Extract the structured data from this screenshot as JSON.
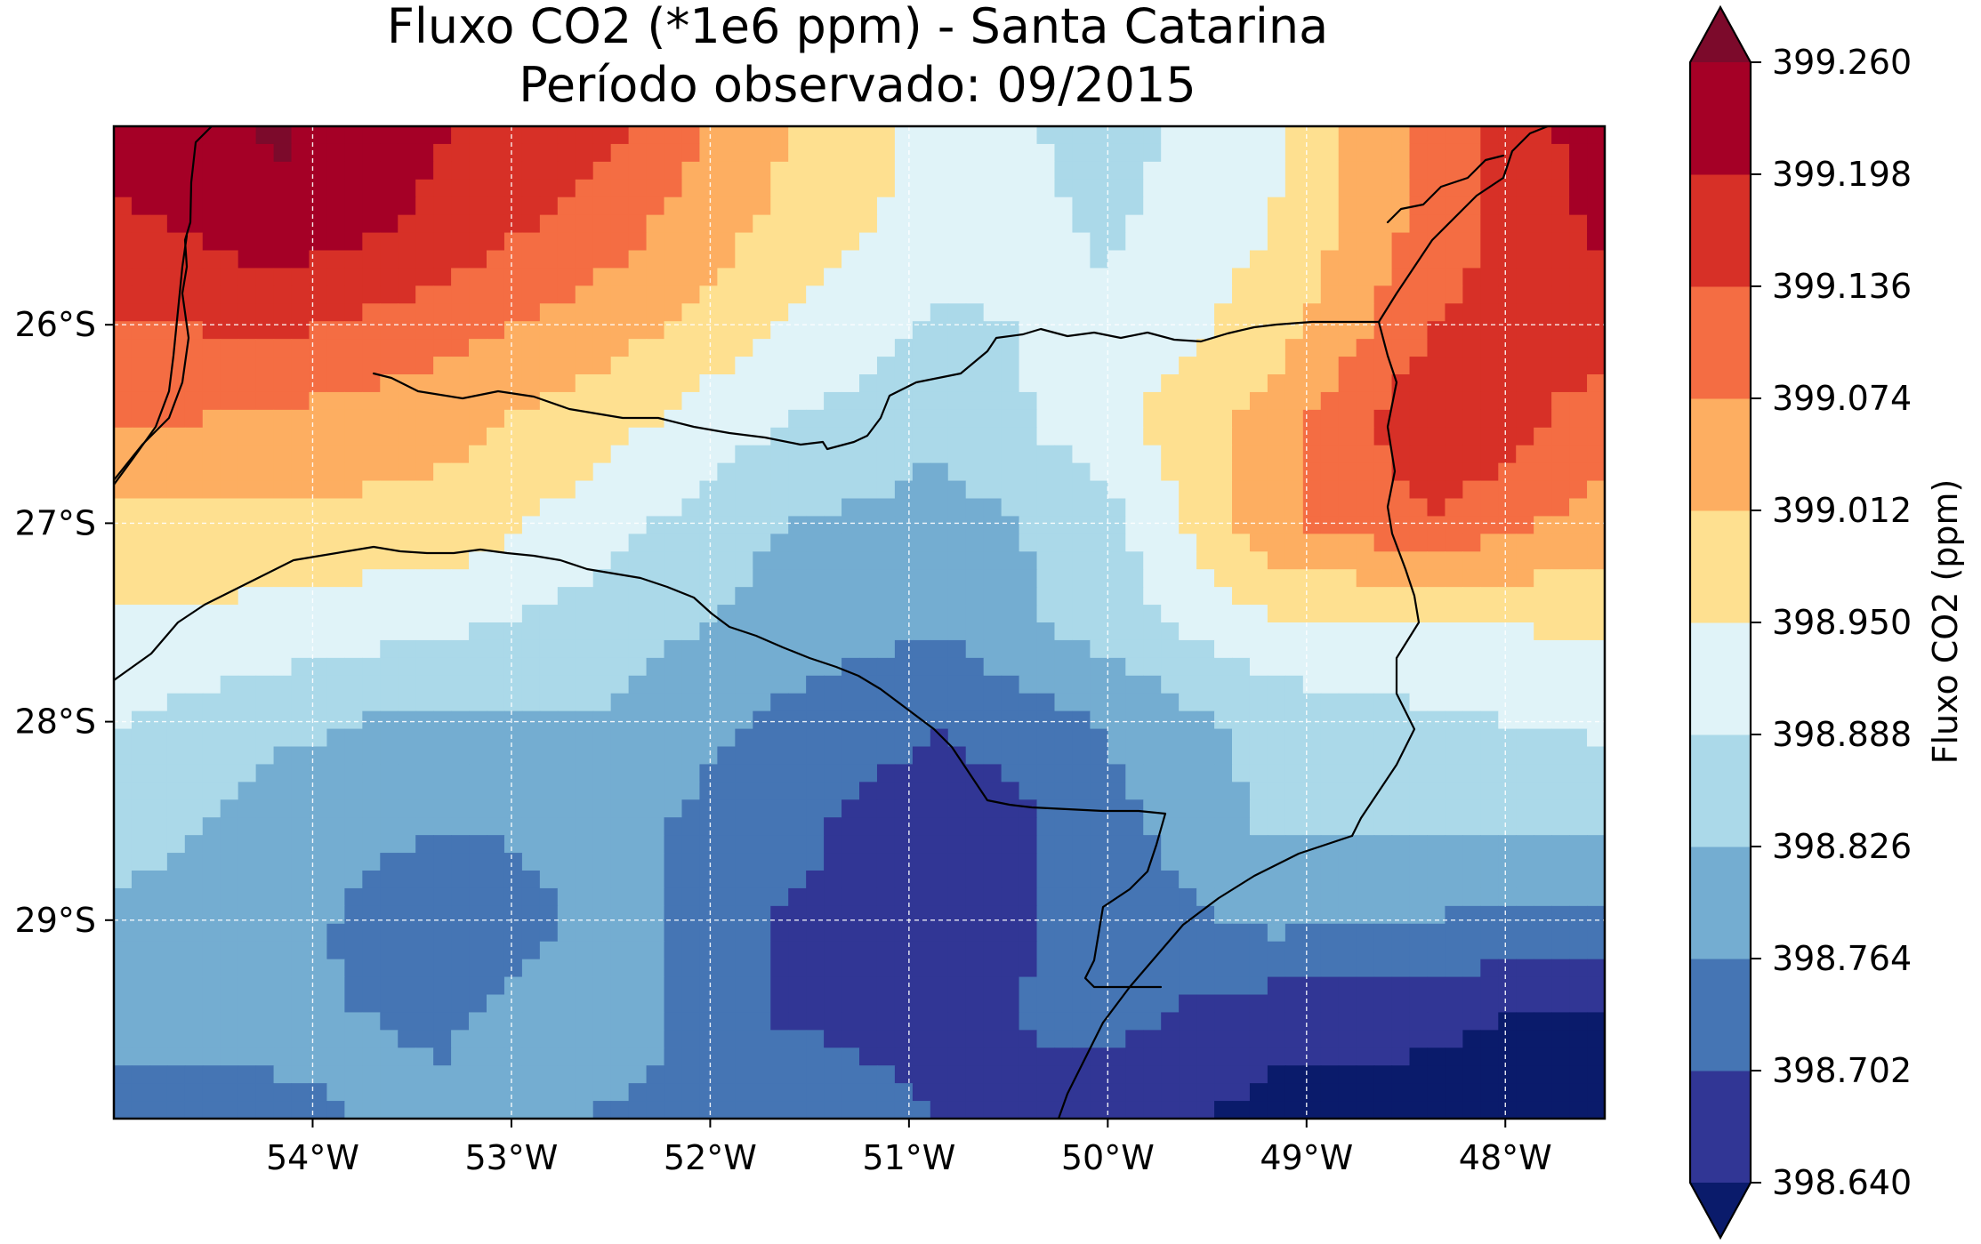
{
  "title": {
    "line1": "Fluxo CO2 (*1e6 ppm) - Santa Catarina",
    "line2": "Período observado: 09/2015"
  },
  "map": {
    "lon_range": [
      -55.0,
      -47.5
    ],
    "lat_range": [
      -30.0,
      -25.0
    ],
    "x_ticks": [
      {
        "value": -54,
        "label": "54°W"
      },
      {
        "value": -53,
        "label": "53°W"
      },
      {
        "value": -52,
        "label": "52°W"
      },
      {
        "value": -51,
        "label": "51°W"
      },
      {
        "value": -50,
        "label": "50°W"
      },
      {
        "value": -49,
        "label": "49°W"
      },
      {
        "value": -48,
        "label": "48°W"
      }
    ],
    "y_ticks": [
      {
        "value": -26,
        "label": "26°S"
      },
      {
        "value": -27,
        "label": "27°S"
      },
      {
        "value": -28,
        "label": "28°S"
      },
      {
        "value": -29,
        "label": "29°S"
      }
    ],
    "grid": true,
    "gridline_style": "dashed white"
  },
  "colorbar": {
    "label": "Fluxo CO2 (ppm)",
    "levels": [
      "398.640",
      "398.702",
      "398.764",
      "398.826",
      "398.888",
      "398.950",
      "399.012",
      "399.074",
      "399.136",
      "399.198",
      "399.260"
    ],
    "colors": [
      "#313695",
      "#4575b4",
      "#74add1",
      "#abd9e9",
      "#e0f3f8",
      "#fee090",
      "#fdae61",
      "#f46d43",
      "#d73027",
      "#a50026"
    ],
    "under_color": "#0a1b6b",
    "over_color": "#7c0a2b",
    "extend": "both"
  },
  "chart_data": {
    "type": "heatmap",
    "title": "Fluxo CO2 (*1e6 ppm) - Santa Catarina",
    "subtitle": "Período observado: 09/2015",
    "colorbar_label": "Fluxo CO2 (ppm)",
    "xlim": [
      -55.0,
      -47.5
    ],
    "ylim": [
      -30.0,
      -25.0
    ],
    "x": [
      -55.0,
      -54.0,
      -53.0,
      -52.0,
      -51.0,
      -50.0,
      -49.0,
      -48.0,
      -47.5
    ],
    "y": [
      -25.0,
      -25.5,
      -26.0,
      -26.5,
      -27.0,
      -27.5,
      -28.0,
      -28.5,
      -29.0,
      -29.5,
      -30.0
    ],
    "values": [
      [
        399.23,
        399.27,
        399.2,
        399.15,
        399.02,
        398.93,
        398.86,
        398.94,
        399.1,
        399.24
      ],
      [
        399.18,
        399.24,
        399.18,
        399.1,
        399.0,
        398.92,
        398.88,
        398.95,
        399.11,
        399.21
      ],
      [
        399.13,
        399.15,
        399.1,
        399.04,
        398.95,
        398.88,
        398.9,
        398.98,
        399.14,
        399.17
      ],
      [
        399.08,
        399.06,
        399.03,
        398.97,
        398.89,
        398.84,
        398.93,
        399.04,
        399.2,
        399.1
      ],
      [
        398.99,
        399.0,
        398.99,
        398.91,
        398.83,
        398.8,
        398.86,
        399.06,
        399.13,
        399.04
      ],
      [
        398.94,
        398.93,
        398.9,
        398.86,
        398.8,
        398.77,
        398.86,
        398.94,
        398.95,
        398.96
      ],
      [
        398.89,
        398.84,
        398.81,
        398.82,
        398.75,
        398.71,
        398.77,
        398.85,
        398.88,
        398.9
      ],
      [
        398.86,
        398.8,
        398.77,
        398.78,
        398.73,
        398.65,
        398.74,
        398.84,
        398.84,
        398.84
      ],
      [
        398.81,
        398.79,
        398.71,
        398.79,
        398.7,
        398.66,
        398.73,
        398.78,
        398.76,
        398.75
      ],
      [
        398.79,
        398.77,
        398.76,
        398.8,
        398.7,
        398.69,
        398.72,
        398.66,
        398.65,
        398.62
      ],
      [
        398.73,
        398.76,
        398.77,
        398.76,
        398.73,
        398.7,
        398.67,
        398.62,
        398.62,
        398.61
      ]
    ],
    "grid_lon": [
      -55.0,
      -54.17,
      -53.33,
      -52.5,
      -51.67,
      -50.83,
      -50.0,
      -49.17,
      -48.33,
      -47.5
    ],
    "grid_lat": [
      -25.0,
      -25.5,
      -26.0,
      -26.5,
      -27.0,
      -27.5,
      -28.0,
      -28.5,
      -29.0,
      -29.5,
      -30.0
    ]
  }
}
